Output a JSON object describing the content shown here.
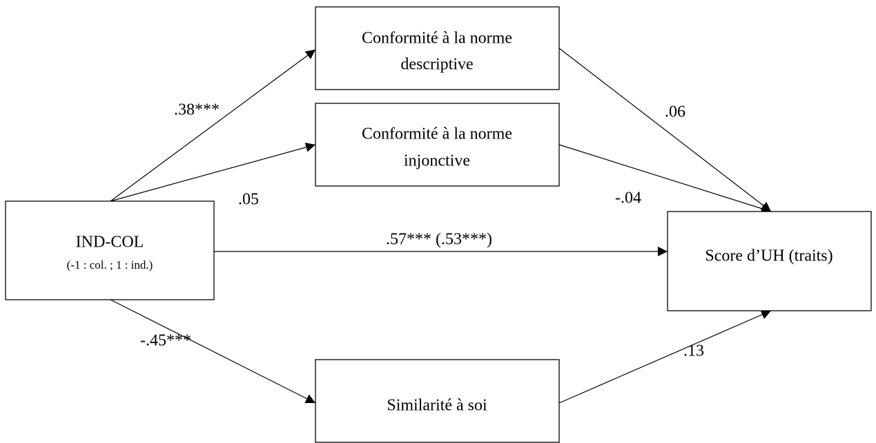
{
  "nodes": [
    {
      "id": "indcol",
      "lines": [
        "IND-COL"
      ],
      "subtitle": "(-1 : col. ; 1 : ind.)"
    },
    {
      "id": "descriptive",
      "lines": [
        "Conformité à la norme",
        "descriptive"
      ]
    },
    {
      "id": "injunctive",
      "lines": [
        "Conformité à la norme",
        "injonctive"
      ]
    },
    {
      "id": "score",
      "lines": [
        "Score d’UH (traits)"
      ]
    },
    {
      "id": "similarity",
      "lines": [
        "Similarité à soi"
      ]
    }
  ],
  "edges": [
    {
      "from": "indcol",
      "to": "descriptive",
      "label": ".38***"
    },
    {
      "from": "indcol",
      "to": "injunctive",
      "label": ".05"
    },
    {
      "from": "indcol",
      "to": "score",
      "label": ".57*** (.53***)"
    },
    {
      "from": "indcol",
      "to": "similarity",
      "label": "-.45***"
    },
    {
      "from": "descriptive",
      "to": "score",
      "label": ".06"
    },
    {
      "from": "injunctive",
      "to": "score",
      "label": "-.04"
    },
    {
      "from": "similarity",
      "to": "score",
      "label": ".13"
    }
  ]
}
